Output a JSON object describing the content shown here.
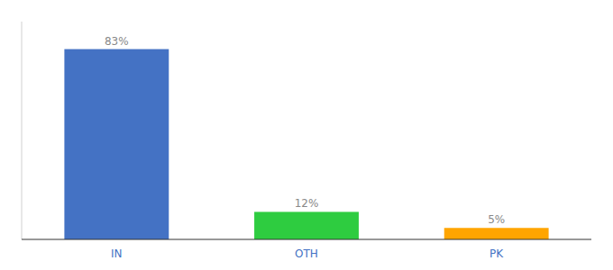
{
  "chart_data": {
    "type": "bar",
    "categories": [
      "IN",
      "OTH",
      "PK"
    ],
    "values": [
      83,
      12,
      5
    ],
    "value_labels": [
      "83%",
      "12%",
      "5%"
    ],
    "colors": [
      "#4472C4",
      "#2ECC40",
      "#FFA500"
    ],
    "ylim": [
      0,
      95
    ],
    "data_labels": true,
    "tick_labels": "x",
    "grid": false
  }
}
